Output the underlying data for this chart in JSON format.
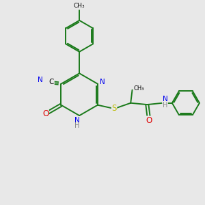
{
  "bg_color": "#e8e8e8",
  "bond_color": "#1a7a1a",
  "atom_colors": {
    "N": "#0000ee",
    "O": "#dd0000",
    "S": "#bbbb00",
    "H": "#888888",
    "C": "#000000"
  },
  "lw": 1.4,
  "fs": 7.0,
  "xlim": [
    0,
    10
  ],
  "ylim": [
    0,
    10
  ],
  "figsize": [
    3.0,
    3.0
  ],
  "dpi": 100
}
